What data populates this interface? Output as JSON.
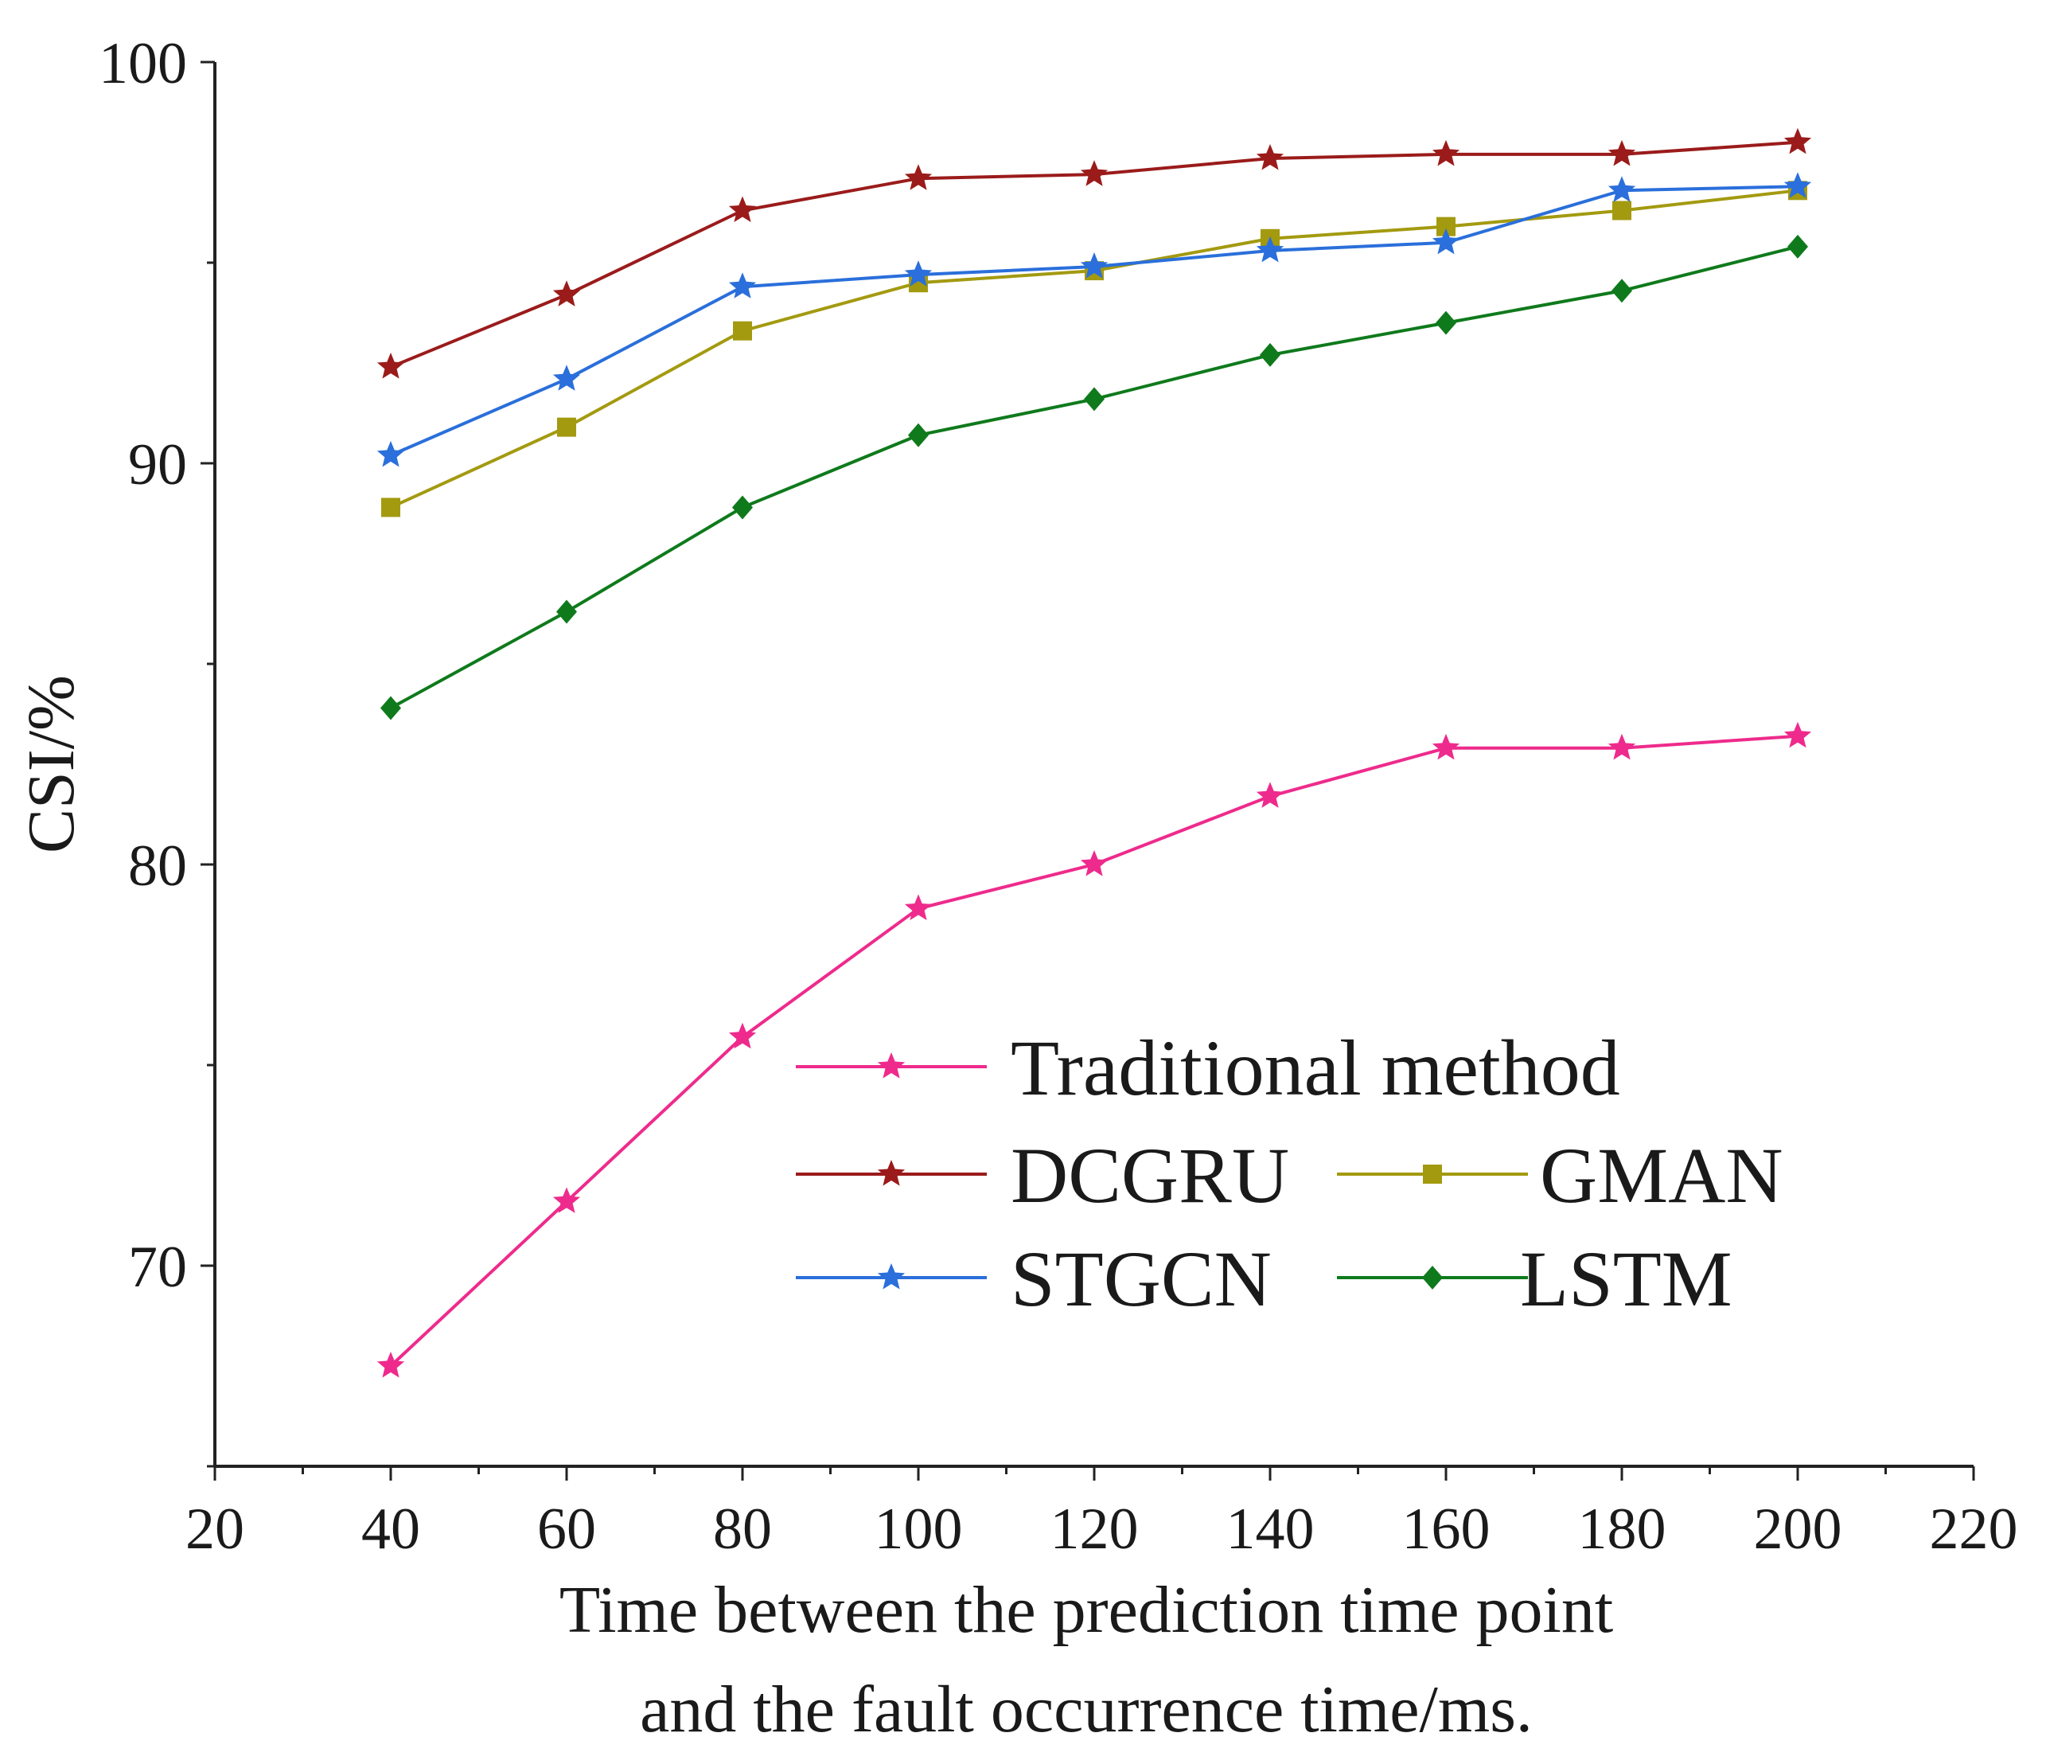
{
  "chart_data": {
    "type": "line",
    "title": "",
    "ylabel": "CSI/%",
    "xlabel_lines": [
      "Time between the prediction time point",
      "and the fault occurrence time/ms."
    ],
    "xlim": [
      20,
      220
    ],
    "ylim": [
      65,
      100
    ],
    "x_ticks": [
      20,
      40,
      60,
      80,
      100,
      120,
      140,
      160,
      180,
      200,
      220
    ],
    "y_ticks": [
      70,
      80,
      90,
      100
    ],
    "x": [
      40,
      60,
      80,
      100,
      120,
      140,
      160,
      180,
      200
    ],
    "legend_position": "bottom-right",
    "series": [
      {
        "name": "Traditional method",
        "color": "#ee2b8c",
        "marker": "star",
        "values": [
          67.5,
          71.6,
          75.7,
          78.9,
          80.0,
          81.7,
          82.9,
          82.9,
          83.2
        ]
      },
      {
        "name": "DCGRU",
        "color": "#9b1b1b",
        "marker": "star",
        "values": [
          92.4,
          94.2,
          96.3,
          97.1,
          97.2,
          97.6,
          97.7,
          97.7,
          98.0
        ]
      },
      {
        "name": "GMAN",
        "color": "#a39a10",
        "marker": "square",
        "values": [
          88.9,
          90.9,
          93.3,
          94.5,
          94.8,
          95.6,
          95.9,
          96.3,
          96.8
        ]
      },
      {
        "name": "STGCN",
        "color": "#2a6fdb",
        "marker": "star",
        "values": [
          90.2,
          92.1,
          94.4,
          94.7,
          94.9,
          95.3,
          95.5,
          96.8,
          96.9
        ]
      },
      {
        "name": "LSTM",
        "color": "#0f7a1c",
        "marker": "diamond",
        "values": [
          83.9,
          86.3,
          88.9,
          90.7,
          91.6,
          92.7,
          93.5,
          94.3,
          95.4
        ]
      }
    ]
  }
}
